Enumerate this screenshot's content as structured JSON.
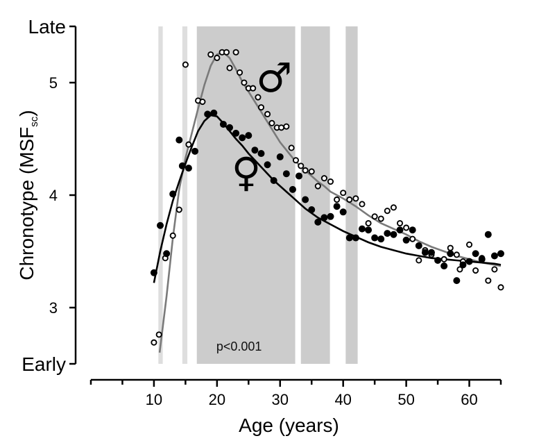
{
  "chart_data": {
    "type": "scatter",
    "title": "",
    "xlabel": "Age (years)",
    "ylabel_main": "Chronotype (MSF",
    "ylabel_sub": "sc",
    "ylabel_close": ")",
    "xlim": [
      0,
      65
    ],
    "ylim": [
      2.5,
      5.5
    ],
    "x_ticks": [
      10,
      20,
      30,
      40,
      50,
      60
    ],
    "x_minor_ticks": [
      0,
      5,
      15,
      25,
      35,
      45,
      55,
      65
    ],
    "y_ticks": [
      3,
      4,
      5
    ],
    "y_extreme_labels": {
      "low": "Early",
      "high": "Late"
    },
    "annotation": "p<0.001",
    "significance_bands": [
      {
        "x0": 10.7,
        "x1": 11.4,
        "shade": "light"
      },
      {
        "x0": 14.5,
        "x1": 15.3,
        "shade": "light"
      },
      {
        "x0": 16.8,
        "x1": 32.4
      },
      {
        "x0": 33.3,
        "x1": 37.9
      },
      {
        "x0": 40.4,
        "x1": 42.3
      }
    ],
    "series": [
      {
        "symbol": "♂",
        "marker": "open",
        "color": "#000000",
        "fit_color": "#7a7a7a",
        "points": [
          [
            10,
            2.69
          ],
          [
            10.8,
            2.76
          ],
          [
            11.8,
            3.44
          ],
          [
            13,
            3.64
          ],
          [
            14,
            3.87
          ],
          [
            15,
            5.16
          ],
          [
            15.5,
            4.45
          ],
          [
            17,
            4.84
          ],
          [
            17.7,
            4.83
          ],
          [
            19,
            5.25
          ],
          [
            20,
            5.22
          ],
          [
            20.8,
            5.27
          ],
          [
            21.5,
            5.27
          ],
          [
            22,
            5.13
          ],
          [
            23,
            5.27
          ],
          [
            23.6,
            5.09
          ],
          [
            24.3,
            5.0
          ],
          [
            25,
            4.95
          ],
          [
            25.7,
            4.95
          ],
          [
            26.5,
            4.87
          ],
          [
            27,
            4.78
          ],
          [
            28,
            4.72
          ],
          [
            28.7,
            4.64
          ],
          [
            29.5,
            4.6
          ],
          [
            30.2,
            4.6
          ],
          [
            31,
            4.61
          ],
          [
            31.8,
            4.42
          ],
          [
            32.5,
            4.31
          ],
          [
            33.3,
            4.26
          ],
          [
            34,
            4.22
          ],
          [
            35,
            4.21
          ],
          [
            36,
            4.08
          ],
          [
            37,
            4.15
          ],
          [
            38,
            4.12
          ],
          [
            39,
            3.96
          ],
          [
            40,
            4.02
          ],
          [
            41,
            3.96
          ],
          [
            42,
            3.97
          ],
          [
            43,
            3.92
          ],
          [
            44,
            3.75
          ],
          [
            45,
            3.81
          ],
          [
            46,
            3.79
          ],
          [
            47,
            3.86
          ],
          [
            48,
            3.89
          ],
          [
            49,
            3.75
          ],
          [
            50,
            3.71
          ],
          [
            51,
            3.61
          ],
          [
            52,
            3.42
          ],
          [
            53,
            3.51
          ],
          [
            54,
            3.47
          ],
          [
            55,
            3.42
          ],
          [
            56,
            3.43
          ],
          [
            57,
            3.53
          ],
          [
            58,
            3.47
          ],
          [
            58.5,
            3.34
          ],
          [
            59,
            3.41
          ],
          [
            60,
            3.56
          ],
          [
            61,
            3.33
          ],
          [
            62,
            3.44
          ],
          [
            63,
            3.24
          ],
          [
            64,
            3.34
          ],
          [
            65,
            3.18
          ]
        ],
        "fit": [
          [
            10.9,
            2.6
          ],
          [
            12,
            3.1
          ],
          [
            13,
            3.62
          ],
          [
            14,
            4.05
          ],
          [
            15,
            4.33
          ],
          [
            16,
            4.55
          ],
          [
            17,
            4.77
          ],
          [
            18,
            4.98
          ],
          [
            19,
            5.15
          ],
          [
            20,
            5.25
          ],
          [
            21,
            5.27
          ],
          [
            22,
            5.22
          ],
          [
            23,
            5.12
          ],
          [
            24,
            5.01
          ],
          [
            25,
            4.92
          ],
          [
            26,
            4.83
          ],
          [
            27,
            4.74
          ],
          [
            28,
            4.65
          ],
          [
            29,
            4.56
          ],
          [
            30,
            4.47
          ],
          [
            31,
            4.4
          ],
          [
            32,
            4.33
          ],
          [
            33,
            4.27
          ],
          [
            34,
            4.22
          ],
          [
            35,
            4.17
          ],
          [
            36,
            4.12
          ],
          [
            37,
            4.08
          ],
          [
            38,
            4.03
          ],
          [
            40,
            3.97
          ],
          [
            42,
            3.9
          ],
          [
            44,
            3.82
          ],
          [
            46,
            3.75
          ],
          [
            48,
            3.7
          ],
          [
            50,
            3.65
          ],
          [
            52,
            3.59
          ],
          [
            54,
            3.54
          ],
          [
            56,
            3.5
          ],
          [
            58,
            3.46
          ],
          [
            60,
            3.43
          ],
          [
            62,
            3.4
          ],
          [
            64,
            3.38
          ],
          [
            65,
            3.37
          ]
        ]
      },
      {
        "symbol": "♀",
        "marker": "filled",
        "color": "#000000",
        "fit_color": "#000000",
        "points": [
          [
            10,
            3.31
          ],
          [
            11,
            3.73
          ],
          [
            12,
            3.48
          ],
          [
            13,
            4.01
          ],
          [
            14,
            4.49
          ],
          [
            14.5,
            4.26
          ],
          [
            15.5,
            4.24
          ],
          [
            16.5,
            4.39
          ],
          [
            18.5,
            4.72
          ],
          [
            19.5,
            4.73
          ],
          [
            21,
            4.63
          ],
          [
            22,
            4.6
          ],
          [
            23,
            4.55
          ],
          [
            24,
            4.51
          ],
          [
            25,
            4.53
          ],
          [
            26,
            4.4
          ],
          [
            27,
            4.37
          ],
          [
            28,
            4.27
          ],
          [
            29,
            4.13
          ],
          [
            30,
            4.34
          ],
          [
            31,
            4.19
          ],
          [
            32,
            4.05
          ],
          [
            33,
            4.17
          ],
          [
            34,
            3.96
          ],
          [
            35,
            3.87
          ],
          [
            36,
            3.76
          ],
          [
            37,
            3.8
          ],
          [
            38,
            3.81
          ],
          [
            39,
            3.9
          ],
          [
            40,
            3.85
          ],
          [
            41,
            3.62
          ],
          [
            42,
            3.62
          ],
          [
            43,
            3.7
          ],
          [
            44,
            3.69
          ],
          [
            45,
            3.62
          ],
          [
            46,
            3.61
          ],
          [
            47,
            3.66
          ],
          [
            48,
            3.65
          ],
          [
            49,
            3.69
          ],
          [
            50,
            3.6
          ],
          [
            51,
            3.69
          ],
          [
            52,
            3.55
          ],
          [
            53,
            3.49
          ],
          [
            54,
            3.49
          ],
          [
            55,
            3.42
          ],
          [
            56,
            3.37
          ],
          [
            57,
            3.48
          ],
          [
            58,
            3.24
          ],
          [
            59,
            3.38
          ],
          [
            60,
            3.41
          ],
          [
            61,
            3.48
          ],
          [
            62,
            3.43
          ],
          [
            63,
            3.65
          ],
          [
            64,
            3.46
          ],
          [
            65,
            3.48
          ]
        ],
        "fit": [
          [
            10,
            3.22
          ],
          [
            11,
            3.5
          ],
          [
            12,
            3.74
          ],
          [
            13,
            3.95
          ],
          [
            14,
            4.12
          ],
          [
            15,
            4.28
          ],
          [
            16,
            4.43
          ],
          [
            17,
            4.57
          ],
          [
            18,
            4.66
          ],
          [
            19,
            4.71
          ],
          [
            20,
            4.7
          ],
          [
            21,
            4.64
          ],
          [
            22,
            4.57
          ],
          [
            23,
            4.5
          ],
          [
            24,
            4.44
          ],
          [
            25,
            4.37
          ],
          [
            26,
            4.31
          ],
          [
            27,
            4.25
          ],
          [
            28,
            4.19
          ],
          [
            29,
            4.13
          ],
          [
            30,
            4.08
          ],
          [
            31,
            4.03
          ],
          [
            32,
            3.98
          ],
          [
            33,
            3.93
          ],
          [
            34,
            3.88
          ],
          [
            35,
            3.84
          ],
          [
            36,
            3.8
          ],
          [
            38,
            3.74
          ],
          [
            40,
            3.68
          ],
          [
            42,
            3.63
          ],
          [
            44,
            3.58
          ],
          [
            46,
            3.54
          ],
          [
            48,
            3.51
          ],
          [
            50,
            3.48
          ],
          [
            52,
            3.46
          ],
          [
            54,
            3.44
          ],
          [
            56,
            3.43
          ],
          [
            58,
            3.42
          ],
          [
            60,
            3.41
          ],
          [
            62,
            3.4
          ],
          [
            64,
            3.39
          ],
          [
            65,
            3.38
          ]
        ]
      }
    ]
  },
  "colors": {
    "band_dark": "#cccccc",
    "band_light": "#dedede",
    "axis": "#000000"
  }
}
